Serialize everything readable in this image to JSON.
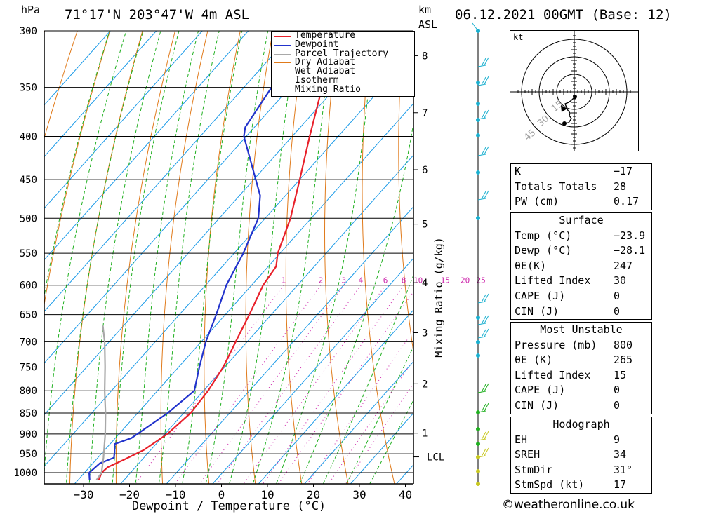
{
  "header": {
    "station": "71°17'N  203°47'W  4m  ASL",
    "datetime": "06.12.2021  00GMT  (Base: 12)",
    "hpa_label": "hPa",
    "km_label": "km",
    "asl_label": "ASL"
  },
  "chart_data": {
    "type": "line",
    "subtype": "skew-t log-p sounding",
    "xlabel": "Dewpoint / Temperature (°C)",
    "ylabel_right": "Mixing Ratio (g/kg)",
    "x_ticks": [
      -30,
      -20,
      -10,
      0,
      10,
      20,
      30,
      40
    ],
    "x_tick_labels": [
      "−30",
      "−20",
      "−10",
      "0",
      "10",
      "20",
      "30",
      "40"
    ],
    "pressure_ticks": [
      300,
      350,
      400,
      450,
      500,
      550,
      600,
      650,
      700,
      750,
      800,
      850,
      900,
      950,
      1000
    ],
    "km_ticks": [
      {
        "km": 8,
        "p": 321
      },
      {
        "km": 7,
        "p": 375
      },
      {
        "km": 6,
        "p": 438
      },
      {
        "km": 5,
        "p": 508
      },
      {
        "km": 4,
        "p": 596
      },
      {
        "km": 3,
        "p": 683
      },
      {
        "km": 2,
        "p": 785
      },
      {
        "km": 1,
        "p": 898
      }
    ],
    "lcl": {
      "label": "LCL",
      "p": 958
    },
    "mixing_ratio_labels": [
      "1",
      "2",
      "3",
      "4",
      "6",
      "8",
      "10",
      "15",
      "20",
      "25"
    ],
    "mixing_ratio_values": [
      1,
      2,
      3,
      4,
      6,
      8,
      10,
      15,
      20,
      25
    ],
    "legend": [
      "Temperature",
      "Dewpoint",
      "Parcel Trajectory",
      "Dry Adiabat",
      "Wet Adiabat",
      "Isotherm",
      "Mixing Ratio"
    ],
    "colors": {
      "temperature": "#e8202a",
      "dewpoint": "#2233cc",
      "parcel": "#a8a8a8",
      "dry_adiabat": "#e07a1a",
      "wet_adiabat": "#20b020",
      "isotherm": "#1a9ae8",
      "mixing_ratio": "#cc22aa"
    },
    "series": [
      {
        "name": "Temperature",
        "points": [
          {
            "p": 1020,
            "t": -25.5
          },
          {
            "p": 1000,
            "t": -26.3
          },
          {
            "p": 985,
            "t": -26.0
          },
          {
            "p": 965,
            "t": -23.9
          },
          {
            "p": 940,
            "t": -21.5
          },
          {
            "p": 900,
            "t": -19.5
          },
          {
            "p": 850,
            "t": -18.5
          },
          {
            "p": 800,
            "t": -19.0
          },
          {
            "p": 750,
            "t": -20.3
          },
          {
            "p": 700,
            "t": -22.5
          },
          {
            "p": 650,
            "t": -24.8
          },
          {
            "p": 600,
            "t": -27.5
          },
          {
            "p": 570,
            "t": -28.3
          },
          {
            "p": 550,
            "t": -30.5
          },
          {
            "p": 500,
            "t": -34.5
          },
          {
            "p": 450,
            "t": -40.0
          },
          {
            "p": 400,
            "t": -46.2
          },
          {
            "p": 350,
            "t": -53.0
          },
          {
            "p": 340,
            "t": -55.0
          },
          {
            "p": 320,
            "t": -56.0
          },
          {
            "p": 300,
            "t": -57.5
          }
        ]
      },
      {
        "name": "Dewpoint",
        "points": [
          {
            "p": 1020,
            "t": -27.5
          },
          {
            "p": 1000,
            "t": -29.0
          },
          {
            "p": 975,
            "t": -28.5
          },
          {
            "p": 960,
            "t": -26.5
          },
          {
            "p": 945,
            "t": -27.5
          },
          {
            "p": 925,
            "t": -29.0
          },
          {
            "p": 910,
            "t": -26.5
          },
          {
            "p": 850,
            "t": -23.5
          },
          {
            "p": 800,
            "t": -22.0
          },
          {
            "p": 750,
            "t": -25.5
          },
          {
            "p": 700,
            "t": -29.0
          },
          {
            "p": 650,
            "t": -32.0
          },
          {
            "p": 600,
            "t": -35.5
          },
          {
            "p": 550,
            "t": -38.0
          },
          {
            "p": 500,
            "t": -41.5
          },
          {
            "p": 470,
            "t": -45.5
          },
          {
            "p": 400,
            "t": -60.5
          },
          {
            "p": 390,
            "t": -62.0
          },
          {
            "p": 340,
            "t": -64.5
          },
          {
            "p": 325,
            "t": -63.0
          },
          {
            "p": 310,
            "t": -59.0
          },
          {
            "p": 300,
            "t": -60.5
          }
        ]
      },
      {
        "name": "Parcel Trajectory",
        "points": [
          {
            "p": 1020,
            "t": -26.0
          },
          {
            "p": 1000,
            "t": -26.3
          },
          {
            "p": 960,
            "t": -28.8
          },
          {
            "p": 900,
            "t": -33.0
          },
          {
            "p": 850,
            "t": -37.0
          },
          {
            "p": 800,
            "t": -41.5
          },
          {
            "p": 750,
            "t": -46.0
          },
          {
            "p": 700,
            "t": -51.0
          },
          {
            "p": 670,
            "t": -54.5
          }
        ]
      }
    ],
    "wind_profile_colors": [
      "#1ab0d0",
      "#20b020",
      "#c8c820"
    ]
  },
  "hodograph": {
    "unit_label": "kt",
    "ring_labels": [
      "15",
      "30",
      "45"
    ]
  },
  "indices": {
    "rows": [
      {
        "label": "K",
        "value": "−17"
      },
      {
        "label": "Totals Totals",
        "value": "28"
      },
      {
        "label": "PW (cm)",
        "value": "0.17"
      }
    ]
  },
  "surface": {
    "title": "Surface",
    "rows": [
      {
        "label": "Temp (°C)",
        "value": "−23.9"
      },
      {
        "label": "Dewp (°C)",
        "value": "−28.1"
      },
      {
        "label": "θE(K)",
        "value": "247"
      },
      {
        "label": "Lifted Index",
        "value": "30"
      },
      {
        "label": "CAPE (J)",
        "value": "0"
      },
      {
        "label": "CIN (J)",
        "value": "0"
      }
    ]
  },
  "most_unstable": {
    "title": "Most Unstable",
    "rows": [
      {
        "label": "Pressure (mb)",
        "value": "800"
      },
      {
        "label": "θE (K)",
        "value": "265"
      },
      {
        "label": "Lifted Index",
        "value": "15"
      },
      {
        "label": "CAPE (J)",
        "value": "0"
      },
      {
        "label": "CIN (J)",
        "value": "0"
      }
    ]
  },
  "hodograph_stats": {
    "title": "Hodograph",
    "rows": [
      {
        "label": "EH",
        "value": "9"
      },
      {
        "label": "SREH",
        "value": "34"
      },
      {
        "label": "StmDir",
        "value": "31°"
      },
      {
        "label": "StmSpd (kt)",
        "value": "17"
      }
    ]
  },
  "footer": {
    "copyright": "©weatheronline.co.uk"
  }
}
